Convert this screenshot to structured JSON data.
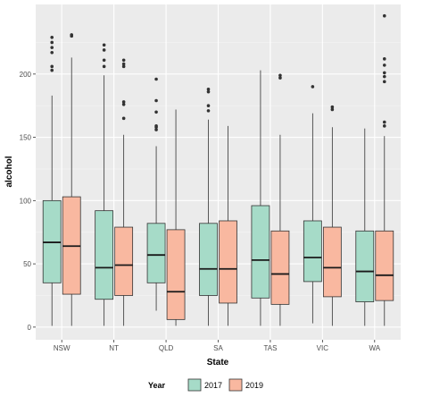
{
  "chart_data": {
    "type": "boxplot",
    "xlabel": "State",
    "ylabel": "alcohol",
    "ylim": [
      -10,
      255
    ],
    "yticks": [
      0,
      50,
      100,
      150,
      200
    ],
    "grid": true,
    "categories": [
      "NSW",
      "NT",
      "QLD",
      "SA",
      "TAS",
      "VIC",
      "WA"
    ],
    "legend": {
      "title": "Year",
      "position": "bottom",
      "items": [
        {
          "label": "2017",
          "color": "#a6dbc8"
        },
        {
          "label": "2019",
          "color": "#f9b8a0"
        }
      ]
    },
    "series": [
      {
        "name": "2017",
        "color": "#a6dbc8",
        "boxes": [
          {
            "category": "NSW",
            "min": 1,
            "q1": 35,
            "median": 67,
            "q3": 100,
            "max": 183,
            "outliers": [
              203,
              206,
              217,
              221,
              225,
              229
            ]
          },
          {
            "category": "NT",
            "min": 1,
            "q1": 22,
            "median": 47,
            "q3": 92,
            "max": 199,
            "outliers": [
              206,
              211,
              219,
              223
            ]
          },
          {
            "category": "QLD",
            "min": 13,
            "q1": 35,
            "median": 57,
            "q3": 82,
            "max": 143,
            "outliers": [
              156,
              158,
              159,
              170,
              179,
              196
            ]
          },
          {
            "category": "SA",
            "min": 1,
            "q1": 25,
            "median": 46,
            "q3": 82,
            "max": 164,
            "outliers": [
              171,
              175,
              186,
              188
            ]
          },
          {
            "category": "TAS",
            "min": 1,
            "q1": 23,
            "median": 53,
            "q3": 96,
            "max": 203,
            "outliers": []
          },
          {
            "category": "VIC",
            "min": 3,
            "q1": 36,
            "median": 55,
            "q3": 84,
            "max": 169,
            "outliers": [
              190
            ]
          },
          {
            "category": "WA",
            "min": 1,
            "q1": 20,
            "median": 44,
            "q3": 76,
            "max": 157,
            "outliers": []
          }
        ]
      },
      {
        "name": "2019",
        "color": "#f9b8a0",
        "boxes": [
          {
            "category": "NSW",
            "min": 1,
            "q1": 26,
            "median": 64,
            "q3": 103,
            "max": 213,
            "outliers": [
              230,
              231
            ]
          },
          {
            "category": "NT",
            "min": 1,
            "q1": 25,
            "median": 49,
            "q3": 79,
            "max": 152,
            "outliers": [
              165,
              176,
              178,
              206,
              208,
              211
            ]
          },
          {
            "category": "QLD",
            "min": 1,
            "q1": 6,
            "median": 28,
            "q3": 77,
            "max": 172,
            "outliers": []
          },
          {
            "category": "SA",
            "min": 1,
            "q1": 19,
            "median": 46,
            "q3": 84,
            "max": 159,
            "outliers": []
          },
          {
            "category": "TAS",
            "min": 1,
            "q1": 18,
            "median": 42,
            "q3": 76,
            "max": 152,
            "outliers": [
              197,
              199
            ]
          },
          {
            "category": "VIC",
            "min": 1,
            "q1": 24,
            "median": 47,
            "q3": 79,
            "max": 158,
            "outliers": [
              172,
              174
            ]
          },
          {
            "category": "WA",
            "min": 1,
            "q1": 21,
            "median": 41,
            "q3": 76,
            "max": 151,
            "outliers": [
              159,
              162,
              194,
              198,
              201,
              207,
              212,
              246
            ]
          }
        ]
      }
    ]
  }
}
